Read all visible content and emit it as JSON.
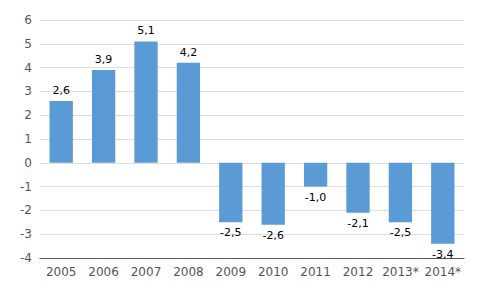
{
  "chart_data": {
    "type": "bar",
    "categories": [
      "2005",
      "2006",
      "2007",
      "2008",
      "2009",
      "2010",
      "2011",
      "2012",
      "2013*",
      "2014*"
    ],
    "values": [
      2.6,
      3.9,
      5.1,
      4.2,
      -2.5,
      -2.6,
      -1.0,
      -2.1,
      -2.5,
      -3.4
    ],
    "value_labels": [
      "2,6",
      "3,9",
      "5,1",
      "4,2",
      "-2,5",
      "-2,6",
      "-1,0",
      "-2,1",
      "-2,5",
      "-3,4"
    ],
    "data_labels": true,
    "color": "#5b9bd5",
    "ylim": [
      -4,
      6
    ],
    "yticks": [
      -4,
      -3,
      -2,
      -1,
      0,
      1,
      2,
      3,
      4,
      5,
      6
    ],
    "grid": true
  }
}
